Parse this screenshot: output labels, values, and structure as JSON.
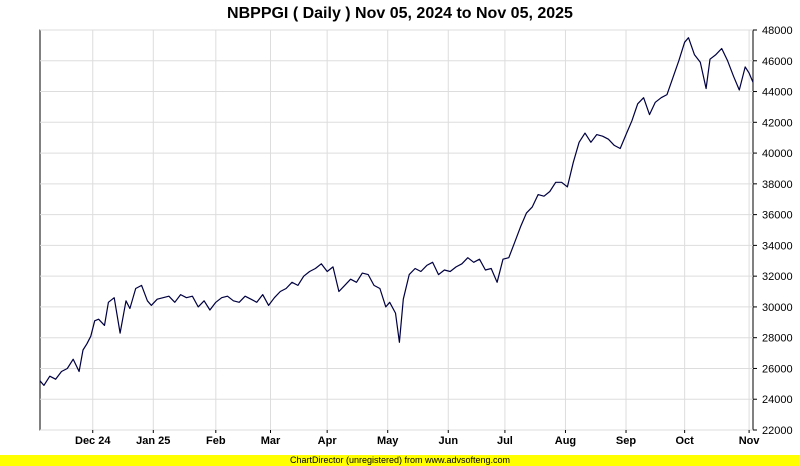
{
  "chart_data": {
    "type": "line",
    "title": "NBPPGI ( Daily ) Nov 05, 2024 to Nov 05, 2025",
    "xlabel": "",
    "ylabel": "",
    "ylim": [
      22000,
      48000
    ],
    "yaxis_side": "right",
    "grid": true,
    "x_start": "2024-11-05",
    "x_end": "2025-11-05",
    "x_tick_labels": [
      {
        "label": "Dec 24",
        "date": "2024-12-02"
      },
      {
        "label": "Jan 25",
        "date": "2025-01-02"
      },
      {
        "label": "Feb",
        "date": "2025-02-03"
      },
      {
        "label": "Mar",
        "date": "2025-03-03"
      },
      {
        "label": "Apr",
        "date": "2025-04-01"
      },
      {
        "label": "May",
        "date": "2025-05-02"
      },
      {
        "label": "Jun",
        "date": "2025-06-02"
      },
      {
        "label": "Jul",
        "date": "2025-07-01"
      },
      {
        "label": "Aug",
        "date": "2025-08-01"
      },
      {
        "label": "Sep",
        "date": "2025-09-01"
      },
      {
        "label": "Oct",
        "date": "2025-10-01"
      },
      {
        "label": "Nov",
        "date": "2025-11-03"
      }
    ],
    "y_ticks": [
      22000,
      24000,
      26000,
      28000,
      30000,
      32000,
      34000,
      36000,
      38000,
      40000,
      42000,
      44000,
      46000,
      48000
    ],
    "series": [
      {
        "color": "#000040",
        "x": [
          "2024-11-05",
          "2024-11-07",
          "2024-11-10",
          "2024-11-13",
          "2024-11-16",
          "2024-11-19",
          "2024-11-22",
          "2024-11-25",
          "2024-11-27",
          "2024-11-29",
          "2024-12-01",
          "2024-12-03",
          "2024-12-05",
          "2024-12-08",
          "2024-12-10",
          "2024-12-13",
          "2024-12-16",
          "2024-12-19",
          "2024-12-21",
          "2024-12-24",
          "2024-12-27",
          "2024-12-30",
          "2025-01-01",
          "2025-01-04",
          "2025-01-07",
          "2025-01-10",
          "2025-01-13",
          "2025-01-16",
          "2025-01-19",
          "2025-01-22",
          "2025-01-25",
          "2025-01-28",
          "2025-01-31",
          "2025-02-03",
          "2025-02-06",
          "2025-02-09",
          "2025-02-12",
          "2025-02-15",
          "2025-02-18",
          "2025-02-21",
          "2025-02-24",
          "2025-02-27",
          "2025-03-02",
          "2025-03-05",
          "2025-03-08",
          "2025-03-11",
          "2025-03-14",
          "2025-03-17",
          "2025-03-20",
          "2025-03-23",
          "2025-03-26",
          "2025-03-29",
          "2025-04-01",
          "2025-04-04",
          "2025-04-07",
          "2025-04-10",
          "2025-04-13",
          "2025-04-16",
          "2025-04-19",
          "2025-04-22",
          "2025-04-25",
          "2025-04-28",
          "2025-05-01",
          "2025-05-03",
          "2025-05-06",
          "2025-05-08",
          "2025-05-10",
          "2025-05-13",
          "2025-05-16",
          "2025-05-19",
          "2025-05-22",
          "2025-05-25",
          "2025-05-28",
          "2025-05-31",
          "2025-06-03",
          "2025-06-06",
          "2025-06-09",
          "2025-06-12",
          "2025-06-15",
          "2025-06-18",
          "2025-06-21",
          "2025-06-24",
          "2025-06-27",
          "2025-06-30",
          "2025-07-03",
          "2025-07-06",
          "2025-07-09",
          "2025-07-12",
          "2025-07-15",
          "2025-07-18",
          "2025-07-21",
          "2025-07-24",
          "2025-07-27",
          "2025-07-30",
          "2025-08-02",
          "2025-08-05",
          "2025-08-08",
          "2025-08-11",
          "2025-08-14",
          "2025-08-17",
          "2025-08-20",
          "2025-08-23",
          "2025-08-26",
          "2025-08-29",
          "2025-09-01",
          "2025-09-04",
          "2025-09-07",
          "2025-09-10",
          "2025-09-13",
          "2025-09-16",
          "2025-09-19",
          "2025-09-22",
          "2025-09-25",
          "2025-09-28",
          "2025-10-01",
          "2025-10-03",
          "2025-10-06",
          "2025-10-09",
          "2025-10-12",
          "2025-10-14",
          "2025-10-17",
          "2025-10-20",
          "2025-10-23",
          "2025-10-26",
          "2025-10-29",
          "2025-11-01",
          "2025-11-03",
          "2025-11-05"
        ],
        "y": [
          25200,
          24900,
          25500,
          25300,
          25800,
          26000,
          26600,
          25800,
          27200,
          27600,
          28100,
          29100,
          29200,
          28800,
          30300,
          30600,
          28300,
          30400,
          29900,
          31200,
          31400,
          30400,
          30100,
          30500,
          30600,
          30700,
          30300,
          30800,
          30600,
          30700,
          30000,
          30400,
          29800,
          30300,
          30600,
          30700,
          30400,
          30300,
          30700,
          30500,
          30300,
          30800,
          30100,
          30600,
          31000,
          31200,
          31600,
          31400,
          32000,
          32300,
          32500,
          32800,
          32300,
          32600,
          31000,
          31400,
          31800,
          31600,
          32200,
          32100,
          31400,
          31200,
          30000,
          30300,
          29600,
          27700,
          30500,
          32100,
          32500,
          32300,
          32700,
          32900,
          32100,
          32400,
          32300,
          32600,
          32800,
          33200,
          32900,
          33100,
          32400,
          32500,
          31600,
          33100,
          33200,
          34200,
          35200,
          36100,
          36500,
          37300,
          37200,
          37500,
          38100,
          38100,
          37800,
          39400,
          40700,
          41300,
          40700,
          41200,
          41100,
          40900,
          40500,
          40300,
          41200,
          42100,
          43200,
          43600,
          42500,
          43300,
          43600,
          43800,
          44900,
          46000,
          47200,
          47500,
          46400,
          45900,
          44200,
          46100,
          46400,
          46800,
          46000,
          45000,
          44100,
          45600,
          45200,
          44600
        ]
      }
    ]
  },
  "footer": {
    "text": "ChartDirector (unregistered) from www.advsofteng.com"
  }
}
